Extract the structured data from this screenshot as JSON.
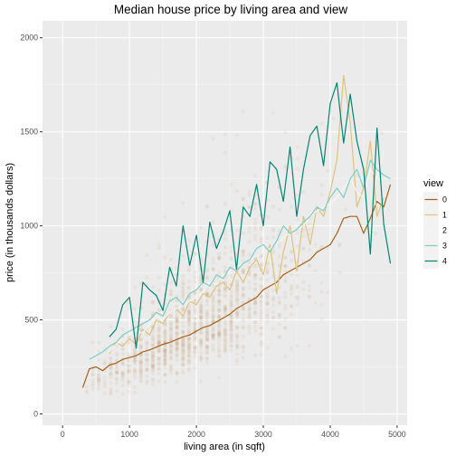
{
  "chart_data": {
    "type": "line",
    "title": "Median house price by living area and view",
    "xlabel": "living area (in sqft)",
    "ylabel": "price (in thousands dollars)",
    "xlim": [
      -300,
      5150
    ],
    "ylim": [
      -60,
      2090
    ],
    "x_ticks": [
      0,
      1000,
      2000,
      3000,
      4000,
      5000
    ],
    "y_ticks": [
      0,
      500,
      1000,
      1500,
      2000
    ],
    "grid": true,
    "background": "#ebebeb",
    "legend": {
      "title": "view",
      "position": "right"
    },
    "has_scatter_background": true,
    "scatter_color": "#c9a57a",
    "series": [
      {
        "name": "0",
        "color": "#a6611a",
        "x": [
          300,
          400,
          500,
          600,
          700,
          800,
          900,
          1000,
          1100,
          1200,
          1300,
          1400,
          1500,
          1600,
          1700,
          1800,
          1900,
          2000,
          2100,
          2200,
          2300,
          2400,
          2500,
          2600,
          2700,
          2800,
          2900,
          3000,
          3100,
          3200,
          3300,
          3400,
          3500,
          3600,
          3700,
          3800,
          3900,
          4000,
          4100,
          4200,
          4300,
          4400,
          4500,
          4600,
          4700,
          4800,
          4900
        ],
        "y": [
          140,
          240,
          250,
          230,
          260,
          270,
          290,
          300,
          310,
          330,
          340,
          355,
          370,
          380,
          395,
          410,
          420,
          440,
          460,
          470,
          490,
          510,
          530,
          560,
          580,
          600,
          620,
          660,
          680,
          700,
          740,
          760,
          780,
          800,
          820,
          860,
          880,
          900,
          960,
          1040,
          1050,
          1050,
          960,
          1040,
          1130,
          1100,
          1220
        ]
      },
      {
        "name": "1",
        "color": "#dfc27d",
        "x": [
          700,
          800,
          900,
          1000,
          1100,
          1200,
          1300,
          1400,
          1500,
          1600,
          1700,
          1800,
          1900,
          2000,
          2100,
          2200,
          2300,
          2400,
          2500,
          2600,
          2700,
          2800,
          2900,
          3000,
          3100,
          3200,
          3300,
          3400,
          3500,
          3600,
          3700,
          3800,
          3900,
          4000,
          4100,
          4200,
          4300,
          4400,
          4500,
          4600,
          4700,
          4800
        ],
        "y": [
          320,
          380,
          360,
          400,
          370,
          450,
          420,
          500,
          480,
          540,
          560,
          520,
          600,
          580,
          640,
          620,
          680,
          700,
          660,
          760,
          700,
          780,
          820,
          740,
          900,
          640,
          860,
          1000,
          760,
          1050,
          900,
          1100,
          1050,
          1180,
          1350,
          1800,
          1550,
          1100,
          1200,
          1450,
          1050,
          1150
        ]
      },
      {
        "name": "2",
        "color": "#f5f5f5",
        "x": [
          700,
          800,
          900,
          1000,
          1100,
          1200,
          1300,
          1400,
          1500,
          1600,
          1700,
          1800,
          1900,
          2000,
          2100,
          2200,
          2300,
          2400,
          2500,
          2600,
          2700,
          2800,
          2900,
          3000,
          3100,
          3200,
          3300,
          3400,
          3500,
          3600,
          3700,
          3800,
          3900,
          4000,
          4100,
          4200,
          4300,
          4400,
          4500,
          4600,
          4700,
          4800
        ],
        "y": [
          330,
          370,
          400,
          420,
          440,
          430,
          480,
          520,
          500,
          540,
          560,
          580,
          600,
          620,
          650,
          700,
          690,
          740,
          760,
          780,
          800,
          820,
          840,
          860,
          880,
          900,
          940,
          960,
          980,
          1000,
          1050,
          1080,
          1100,
          1120,
          1150,
          1200,
          1250,
          1180,
          1150,
          1300,
          1250,
          1400
        ]
      },
      {
        "name": "3",
        "color": "#80cdc1",
        "x": [
          400,
          500,
          600,
          700,
          800,
          900,
          1000,
          1100,
          1200,
          1300,
          1400,
          1500,
          1600,
          1700,
          1800,
          1900,
          2000,
          2100,
          2200,
          2300,
          2400,
          2500,
          2600,
          2700,
          2800,
          2900,
          3000,
          3100,
          3200,
          3300,
          3400,
          3500,
          3600,
          3700,
          3800,
          3900,
          4000,
          4100,
          4200,
          4300,
          4400,
          4500,
          4600,
          4700,
          4800,
          4900
        ],
        "y": [
          290,
          310,
          330,
          360,
          380,
          420,
          440,
          460,
          480,
          500,
          540,
          520,
          600,
          620,
          580,
          640,
          660,
          700,
          680,
          740,
          720,
          780,
          760,
          800,
          820,
          880,
          900,
          860,
          920,
          1000,
          960,
          980,
          1020,
          1050,
          1100,
          1080,
          1150,
          1200,
          1150,
          1250,
          1300,
          1200,
          1350,
          1300,
          1270,
          1250
        ]
      },
      {
        "name": "4",
        "color": "#018571",
        "x": [
          700,
          800,
          900,
          1000,
          1100,
          1200,
          1300,
          1400,
          1500,
          1600,
          1700,
          1800,
          1900,
          2000,
          2100,
          2200,
          2300,
          2400,
          2500,
          2600,
          2700,
          2800,
          2900,
          3000,
          3100,
          3200,
          3300,
          3400,
          3500,
          3600,
          3700,
          3800,
          3900,
          4000,
          4100,
          4200,
          4300,
          4400,
          4500,
          4600,
          4700,
          4800,
          4900
        ],
        "y": [
          410,
          450,
          580,
          620,
          350,
          700,
          660,
          630,
          550,
          780,
          680,
          1000,
          790,
          950,
          700,
          1020,
          880,
          970,
          1080,
          770,
          1100,
          1050,
          1220,
          1000,
          1340,
          1300,
          1130,
          1420,
          1050,
          1300,
          1480,
          1530,
          1320,
          1650,
          1760,
          1440,
          1700,
          1450,
          1300,
          850,
          1520,
          1010,
          800
        ]
      }
    ]
  }
}
